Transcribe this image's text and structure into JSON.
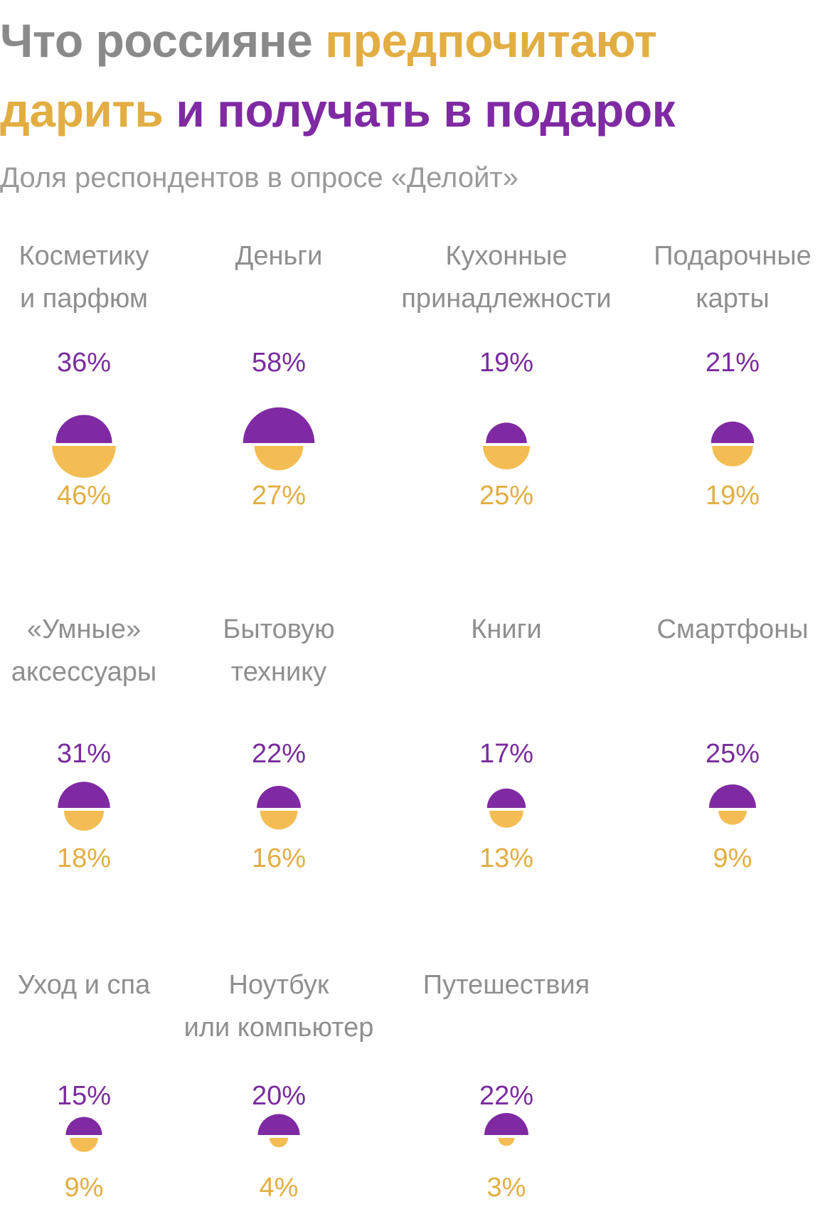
{
  "title": {
    "p1": "Что россияне ",
    "p2": "предпочитают",
    "p3": "дарить",
    "p4": " и получать в подарок"
  },
  "subtitle": "Доля респондентов в опросе «Делойт»",
  "colors": {
    "title_gray": "#8a8a8a",
    "give": "#f3bd53",
    "give_text": "#e2ae43",
    "receive": "#7f2aa3",
    "receive_text": "#7a2b9e"
  },
  "chart_data": {
    "type": "half-circle area chart",
    "series": [
      {
        "name": "получать в подарок",
        "color": "#7f2aa3"
      },
      {
        "name": "дарить",
        "color": "#f3bd53"
      }
    ],
    "items": [
      {
        "label": "Косметику\nи парфюм",
        "receive": 36,
        "give": 46,
        "receive_label": "36%",
        "give_label": "46%"
      },
      {
        "label": "Деньги",
        "receive": 58,
        "give": 27,
        "receive_label": "58%",
        "give_label": "27%"
      },
      {
        "label": "Кухонные\nпринадлежности",
        "receive": 19,
        "give": 25,
        "receive_label": "19%",
        "give_label": "25%"
      },
      {
        "label": "Подарочные\nкарты",
        "receive": 21,
        "give": 19,
        "receive_label": "21%",
        "give_label": "19%"
      },
      {
        "label": "«Умные»\nаксессуары",
        "receive": 31,
        "give": 18,
        "receive_label": "31%",
        "give_label": "18%"
      },
      {
        "label": "Бытовую\nтехнику",
        "receive": 22,
        "give": 16,
        "receive_label": "22%",
        "give_label": "16%"
      },
      {
        "label": "Книги",
        "receive": 17,
        "give": 13,
        "receive_label": "17%",
        "give_label": "13%"
      },
      {
        "label": "Смартфоны",
        "receive": 25,
        "give": 9,
        "receive_label": "25%",
        "give_label": "9%"
      },
      {
        "label": "Уход и спа",
        "receive": 15,
        "give": 9,
        "receive_label": "15%",
        "give_label": "9%"
      },
      {
        "label": "Ноутбук\nили компьютер",
        "receive": 20,
        "give": 4,
        "receive_label": "20%",
        "give_label": "4%"
      },
      {
        "label": "Путешествия",
        "receive": 22,
        "give": 3,
        "receive_label": "22%",
        "give_label": "3%"
      }
    ]
  }
}
